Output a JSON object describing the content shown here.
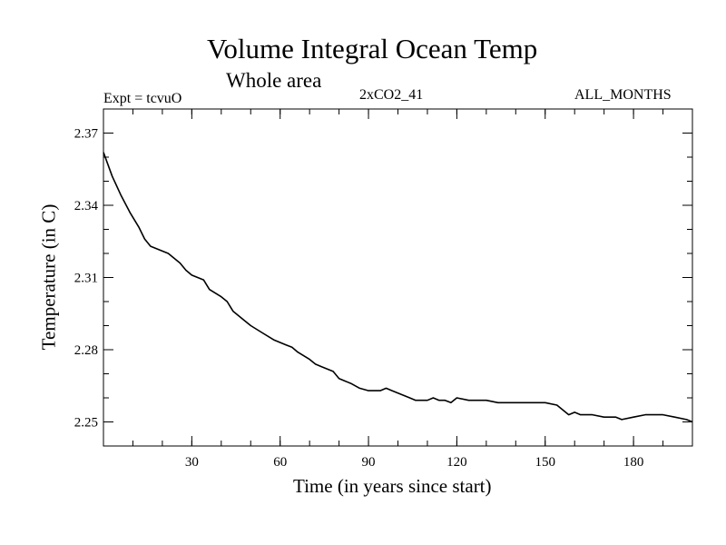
{
  "chart_data": {
    "type": "line",
    "title": "Volume Integral Ocean Temp",
    "subtitle": "Whole area",
    "annotations": {
      "left": "Expt = tcvuO",
      "center": "2xCO2_41",
      "right": "ALL_MONTHS"
    },
    "xlabel": "Time (in years since start)",
    "ylabel": "Temperature (in C)",
    "xlim": [
      0,
      200
    ],
    "ylim": [
      2.24,
      2.38
    ],
    "xticks": [
      30,
      60,
      90,
      120,
      150,
      180
    ],
    "xtick_labels": [
      "30",
      "60",
      "90",
      "120",
      "150",
      "180"
    ],
    "yticks": [
      2.25,
      2.28,
      2.31,
      2.34,
      2.37
    ],
    "ytick_labels": [
      "2.25",
      "2.28",
      "2.31",
      "2.34",
      "2.37"
    ],
    "grid": false,
    "series": [
      {
        "color": "#000000",
        "x": [
          0,
          3,
          6,
          9,
          12,
          14,
          16,
          18,
          22,
          26,
          28,
          30,
          34,
          36,
          40,
          42,
          44,
          48,
          50,
          54,
          58,
          62,
          64,
          66,
          70,
          72,
          74,
          78,
          80,
          84,
          87,
          90,
          94,
          96,
          98,
          102,
          104,
          106,
          110,
          112,
          114,
          116,
          118,
          120,
          124,
          126,
          130,
          134,
          138,
          142,
          146,
          150,
          154,
          158,
          160,
          162,
          166,
          170,
          174,
          176,
          180,
          184,
          188,
          190,
          194,
          198,
          200
        ],
        "y": [
          2.362,
          2.352,
          2.344,
          2.337,
          2.331,
          2.326,
          2.323,
          2.322,
          2.32,
          2.316,
          2.313,
          2.311,
          2.309,
          2.305,
          2.302,
          2.3,
          2.296,
          2.292,
          2.29,
          2.287,
          2.284,
          2.282,
          2.281,
          2.279,
          2.276,
          2.274,
          2.273,
          2.271,
          2.268,
          2.266,
          2.264,
          2.263,
          2.263,
          2.264,
          2.263,
          2.261,
          2.26,
          2.259,
          2.259,
          2.26,
          2.259,
          2.259,
          2.258,
          2.26,
          2.259,
          2.259,
          2.259,
          2.258,
          2.258,
          2.258,
          2.258,
          2.258,
          2.257,
          2.253,
          2.254,
          2.253,
          2.253,
          2.252,
          2.252,
          2.251,
          2.252,
          2.253,
          2.253,
          2.253,
          2.252,
          2.251,
          2.25
        ]
      }
    ]
  }
}
